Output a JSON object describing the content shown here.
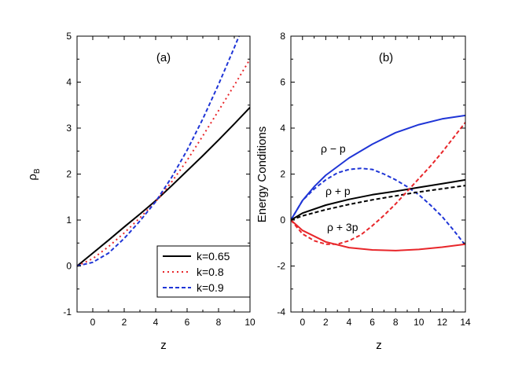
{
  "chart_data": [
    {
      "type": "line",
      "panel_label": "(a)",
      "xlabel": "z",
      "ylabel": "ρ",
      "ylabel_sub": "B",
      "xlim": [
        -1,
        10
      ],
      "ylim": [
        -1,
        5
      ],
      "xticks": [
        0,
        2,
        4,
        6,
        8,
        10
      ],
      "yticks": [
        -1,
        0,
        1,
        2,
        3,
        4,
        5
      ],
      "legend_position": "bottom-right",
      "series": [
        {
          "name": "k=0.65",
          "color": "#000000",
          "dash": "solid",
          "x": [
            -1,
            0,
            1,
            2,
            3,
            4,
            5,
            6,
            7,
            8,
            9,
            10
          ],
          "y": [
            0,
            0.28,
            0.56,
            0.85,
            1.13,
            1.42,
            1.74,
            2.07,
            2.4,
            2.74,
            3.09,
            3.45
          ]
        },
        {
          "name": "k=0.8",
          "color": "#e8262a",
          "dash": "dot",
          "x": [
            -1,
            0,
            1,
            2,
            3,
            4,
            5,
            6,
            7,
            8,
            9,
            10
          ],
          "y": [
            0,
            0.16,
            0.42,
            0.72,
            1.05,
            1.4,
            1.82,
            2.3,
            2.83,
            3.38,
            3.93,
            4.5
          ]
        },
        {
          "name": "k=0.9",
          "color": "#1f35d6",
          "dash": "dash",
          "x": [
            -1,
            0,
            1,
            2,
            3,
            4,
            5,
            6,
            7,
            8,
            9,
            9.3
          ],
          "y": [
            0,
            0.08,
            0.28,
            0.6,
            0.98,
            1.4,
            1.92,
            2.52,
            3.2,
            3.95,
            4.75,
            5.0
          ]
        }
      ]
    },
    {
      "type": "line",
      "panel_label": "(b)",
      "xlabel": "z",
      "ylabel": "Energy Conditions",
      "xlim": [
        -1,
        14
      ],
      "ylim": [
        -4,
        8
      ],
      "xticks": [
        0,
        2,
        4,
        6,
        8,
        10,
        12,
        14
      ],
      "yticks": [
        -4,
        -2,
        0,
        2,
        4,
        6,
        8
      ],
      "annotations": [
        "ρ − p",
        "ρ + p",
        "ρ  + 3p"
      ],
      "series": [
        {
          "color": "#1f35d6",
          "dash": "solid",
          "x": [
            -1,
            0,
            1,
            2,
            4,
            6,
            8,
            10,
            12,
            14
          ],
          "y": [
            0,
            0.85,
            1.45,
            1.95,
            2.7,
            3.3,
            3.8,
            4.15,
            4.4,
            4.55
          ]
        },
        {
          "color": "#1f35d6",
          "dash": "dash",
          "x": [
            -1,
            0,
            1,
            2,
            3,
            4,
            5,
            6,
            7,
            8,
            9,
            10,
            11,
            12,
            13,
            14
          ],
          "y": [
            0,
            0.85,
            1.35,
            1.75,
            2.05,
            2.2,
            2.25,
            2.2,
            2.0,
            1.75,
            1.45,
            1.1,
            0.65,
            0.15,
            -0.45,
            -1.1
          ]
        },
        {
          "color": "#000000",
          "dash": "solid",
          "x": [
            -1,
            0,
            2,
            4,
            6,
            8,
            10,
            12,
            14
          ],
          "y": [
            0,
            0.3,
            0.65,
            0.9,
            1.1,
            1.25,
            1.42,
            1.58,
            1.75
          ]
        },
        {
          "color": "#000000",
          "dash": "dash",
          "x": [
            -1,
            0,
            2,
            4,
            6,
            8,
            10,
            12,
            14
          ],
          "y": [
            0,
            0.18,
            0.45,
            0.68,
            0.88,
            1.05,
            1.22,
            1.36,
            1.5
          ]
        },
        {
          "color": "#e8262a",
          "dash": "solid",
          "x": [
            -1,
            0,
            2,
            4,
            6,
            8,
            10,
            12,
            14
          ],
          "y": [
            0,
            -0.45,
            -0.95,
            -1.2,
            -1.3,
            -1.33,
            -1.28,
            -1.18,
            -1.05
          ]
        },
        {
          "color": "#e8262a",
          "dash": "dash",
          "x": [
            -1,
            0,
            1,
            2,
            3,
            4,
            5,
            6,
            7,
            8,
            9,
            10,
            11,
            12,
            13,
            14
          ],
          "y": [
            0,
            -0.6,
            -0.9,
            -1.05,
            -1.05,
            -0.9,
            -0.65,
            -0.25,
            0.2,
            0.7,
            1.25,
            1.8,
            2.35,
            2.95,
            3.6,
            4.25
          ]
        }
      ]
    }
  ]
}
